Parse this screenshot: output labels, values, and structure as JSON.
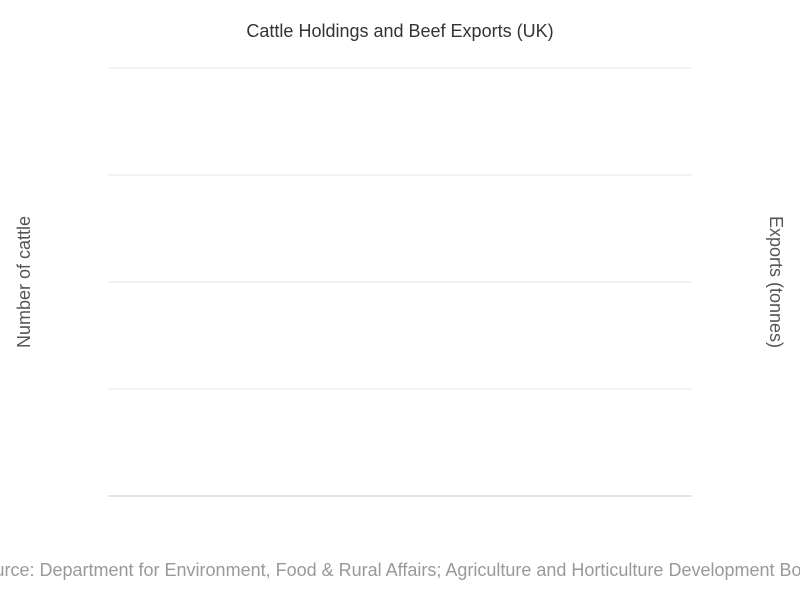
{
  "chart_data": {
    "type": "bar",
    "title": "Cattle Holdings and Beef Exports (UK)",
    "ylabel": "Number of cattle",
    "y2label": "Exports (tonnes)",
    "source": "Source: Department for Environment, Food & Rural Affairs; Agriculture and Horticulture Development Board",
    "categories": [],
    "series": [],
    "grid": true,
    "gridline_count": 4
  }
}
